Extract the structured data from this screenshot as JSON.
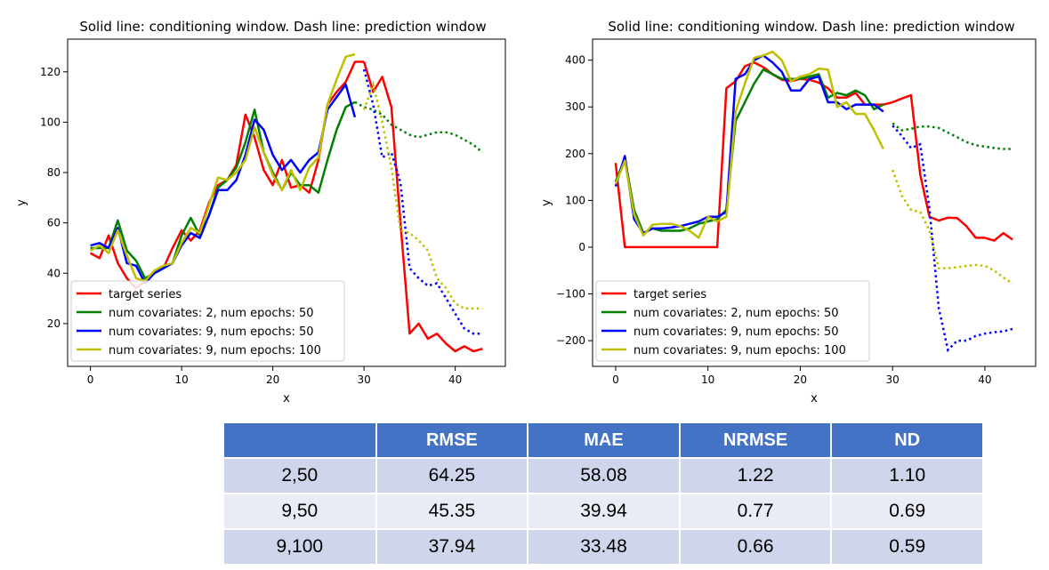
{
  "chart_data": [
    {
      "type": "line",
      "title": "Solid line: conditioning window. Dash line: prediction window",
      "xlabel": "x",
      "ylabel": "y",
      "xlim": [
        -2.5,
        45.5
      ],
      "ylim": [
        3,
        133
      ],
      "xticks": [
        0,
        10,
        20,
        30,
        40
      ],
      "yticks": [
        20,
        40,
        60,
        80,
        100,
        120
      ],
      "legend_position": "lower-left",
      "grid": false,
      "series": [
        {
          "name": "target series",
          "color": "#ff0000",
          "solid": {
            "x": [
              0,
              1,
              2,
              3,
              4,
              5,
              6,
              7,
              8,
              9,
              10,
              11,
              12,
              13,
              14,
              15,
              16,
              17,
              18,
              19,
              20,
              21,
              22,
              23,
              24,
              25,
              26,
              27,
              28,
              29,
              30
            ],
            "y": [
              48,
              46,
              55,
              44,
              38,
              34,
              37,
              40,
              42,
              50,
              57,
              53,
              57,
              68,
              75,
              77,
              83,
              103,
              94,
              81,
              75,
              85,
              74,
              75,
              72,
              85,
              107,
              112,
              116,
              124,
              124
            ]
          },
          "dashed": null,
          "tail": {
            "x": [
              30,
              31,
              32,
              33,
              34,
              35,
              36,
              37,
              38,
              39,
              40,
              41,
              42,
              43
            ],
            "y": [
              124,
              112,
              118,
              106,
              60,
              16,
              20,
              14,
              16,
              12,
              9,
              11,
              9,
              10
            ]
          }
        },
        {
          "name": "num covariates: 2, num epochs: 50",
          "color": "#008000",
          "solid": {
            "x": [
              0,
              1,
              2,
              3,
              4,
              5,
              6,
              7,
              8,
              9,
              10,
              11,
              12,
              13,
              14,
              15,
              16,
              17,
              18,
              19,
              20,
              21,
              22,
              23,
              24,
              25,
              26,
              27,
              28,
              29
            ],
            "y": [
              50,
              50,
              50,
              61,
              49,
              45,
              38,
              40,
              42,
              44,
              55,
              62,
              55,
              63,
              74,
              77,
              82,
              92,
              105,
              88,
              80,
              73,
              80,
              75,
              75,
              72,
              85,
              97,
              106,
              108
            ]
          },
          "dashed": {
            "x": [
              29,
              30,
              31,
              32,
              33,
              34,
              35,
              36,
              37,
              38,
              39,
              40,
              41,
              42,
              43
            ],
            "y": [
              108,
              106,
              105,
              103,
              99,
              97,
              95,
              94,
              95,
              96,
              96,
              95,
              93,
              91,
              88
            ]
          }
        },
        {
          "name": "num covariates: 9, num epochs: 50",
          "color": "#0000ff",
          "solid": {
            "x": [
              0,
              1,
              2,
              3,
              4,
              5,
              6,
              7,
              8,
              9,
              10,
              11,
              12,
              13,
              14,
              15,
              16,
              17,
              18,
              19,
              20,
              21,
              22,
              23,
              24,
              25,
              26,
              27,
              28,
              29
            ],
            "y": [
              51,
              52,
              50,
              58,
              44,
              43,
              36,
              40,
              42,
              44,
              51,
              56,
              54,
              63,
              73,
              73,
              77,
              87,
              101,
              97,
              87,
              81,
              85,
              80,
              85,
              88,
              105,
              110,
              115,
              102
            ]
          },
          "dashed": {
            "x": [
              30,
              31,
              32,
              33,
              34,
              35,
              36,
              37,
              38,
              39,
              40,
              41,
              42,
              43
            ],
            "y": [
              121,
              107,
              86,
              88,
              76,
              42,
              38,
              35,
              36,
              30,
              24,
              18,
              16,
              16
            ]
          }
        },
        {
          "name": "num covariates: 9, num epochs: 100",
          "color": "#bfbf00",
          "solid": {
            "x": [
              0,
              1,
              2,
              3,
              4,
              5,
              6,
              7,
              8,
              9,
              10,
              11,
              12,
              13,
              14,
              15,
              16,
              17,
              18,
              19,
              20,
              21,
              22,
              23,
              24,
              25,
              26,
              27,
              28,
              29
            ],
            "y": [
              49,
              51,
              48,
              57,
              47,
              38,
              37,
              41,
              43,
              44,
              52,
              58,
              56,
              67,
              78,
              77,
              80,
              85,
              98,
              88,
              79,
              73,
              81,
              73,
              82,
              86,
              107,
              117,
              126,
              127
            ]
          },
          "dashed": {
            "x": [
              30,
              31,
              32,
              33,
              34,
              35,
              36,
              37,
              38,
              39,
              40,
              41,
              42,
              43
            ],
            "y": [
              105,
              115,
              100,
              82,
              57,
              56,
              53,
              49,
              38,
              34,
              28,
              26,
              26,
              26
            ]
          }
        }
      ]
    },
    {
      "type": "line",
      "title": "Solid line: conditioning window. Dash line: prediction window",
      "xlabel": "x",
      "ylabel": "y",
      "xlim": [
        -2.5,
        45.5
      ],
      "ylim": [
        -255,
        445
      ],
      "xticks": [
        0,
        10,
        20,
        30,
        40
      ],
      "yticks": [
        -200,
        -100,
        0,
        100,
        200,
        300,
        400
      ],
      "legend_position": "lower-left",
      "grid": false,
      "series": [
        {
          "name": "target series",
          "color": "#ff0000",
          "solid": {
            "x": [
              0,
              1,
              2,
              3,
              4,
              5,
              6,
              7,
              8,
              9,
              10,
              11,
              12,
              13,
              14,
              15,
              16,
              17,
              18,
              19,
              20,
              21,
              22,
              23,
              24,
              25,
              26,
              27,
              28,
              29,
              30
            ],
            "y": [
              180,
              0,
              0,
              0,
              0,
              0,
              0,
              0,
              0,
              0,
              0,
              0,
              340,
              355,
              387,
              395,
              385,
              370,
              358,
              355,
              360,
              358,
              352,
              340,
              320,
              320,
              330,
              305,
              305,
              305,
              310
            ]
          },
          "dashed": null,
          "tail": {
            "x": [
              30,
              31,
              32,
              33,
              34,
              35,
              36,
              37,
              38,
              39,
              40,
              41,
              42,
              43
            ],
            "y": [
              310,
              318,
              325,
              155,
              65,
              57,
              63,
              62,
              45,
              20,
              20,
              14,
              30,
              16
            ]
          }
        },
        {
          "name": "num covariates: 2, num epochs: 50",
          "color": "#008000",
          "solid": {
            "x": [
              0,
              1,
              2,
              3,
              4,
              5,
              6,
              7,
              8,
              9,
              10,
              11,
              12,
              13,
              14,
              15,
              16,
              17,
              18,
              19,
              20,
              21,
              22,
              23,
              24,
              25,
              26,
              27,
              28,
              29
            ],
            "y": [
              140,
              190,
              80,
              30,
              40,
              35,
              35,
              35,
              40,
              50,
              55,
              60,
              80,
              270,
              310,
              350,
              380,
              370,
              360,
              360,
              360,
              365,
              370,
              320,
              330,
              325,
              335,
              325,
              295,
              305
            ]
          },
          "dashed": {
            "x": [
              30,
              31,
              32,
              33,
              34,
              35,
              36,
              37,
              38,
              39,
              40,
              41,
              42,
              43
            ],
            "y": [
              265,
              250,
              253,
              258,
              258,
              255,
              245,
              235,
              225,
              218,
              215,
              212,
              210,
              210
            ]
          }
        },
        {
          "name": "num covariates: 9, num epochs: 50",
          "color": "#0000ff",
          "solid": {
            "x": [
              0,
              1,
              2,
              3,
              4,
              5,
              6,
              7,
              8,
              9,
              10,
              11,
              12,
              13,
              14,
              15,
              16,
              17,
              18,
              19,
              20,
              21,
              22,
              23,
              24,
              25,
              26,
              27,
              28,
              29
            ],
            "y": [
              130,
              195,
              60,
              30,
              40,
              40,
              42,
              45,
              50,
              55,
              65,
              65,
              75,
              360,
              370,
              400,
              410,
              395,
              375,
              335,
              335,
              360,
              365,
              310,
              310,
              295,
              305,
              305,
              305,
              290
            ]
          },
          "dashed": {
            "x": [
              30,
              31,
              32,
              33,
              34,
              35,
              36,
              37,
              38,
              39,
              40,
              41,
              42,
              43
            ],
            "y": [
              260,
              238,
              212,
              220,
              82,
              -130,
              -220,
              -200,
              -200,
              -190,
              -185,
              -182,
              -180,
              -175
            ]
          }
        },
        {
          "name": "num covariates: 9, num epochs: 100",
          "color": "#bfbf00",
          "solid": {
            "x": [
              0,
              1,
              2,
              3,
              4,
              5,
              6,
              7,
              8,
              9,
              10,
              11,
              12,
              13,
              14,
              15,
              16,
              17,
              18,
              19,
              20,
              21,
              22,
              23,
              24,
              25,
              26,
              27,
              28,
              29
            ],
            "y": [
              135,
              185,
              70,
              25,
              48,
              50,
              50,
              45,
              35,
              20,
              65,
              55,
              65,
              290,
              350,
              405,
              410,
              418,
              400,
              355,
              365,
              370,
              382,
              380,
              300,
              310,
              285,
              285,
              250,
              210
            ]
          },
          "dashed": {
            "x": [
              30,
              31,
              32,
              33,
              34,
              35,
              36,
              37,
              38,
              39,
              40,
              41,
              42,
              43
            ],
            "y": [
              165,
              110,
              80,
              75,
              35,
              -45,
              -45,
              -43,
              -40,
              -38,
              -40,
              -50,
              -65,
              -78
            ]
          }
        }
      ]
    }
  ],
  "table": {
    "headers": [
      "",
      "RMSE",
      "MAE",
      "NRMSE",
      "ND"
    ],
    "rows": [
      [
        "2,50",
        "64.25",
        "58.08",
        "1.22",
        "1.10"
      ],
      [
        "9,50",
        "45.35",
        "39.94",
        "0.77",
        "0.69"
      ],
      [
        "9,100",
        "37.94",
        "33.48",
        "0.66",
        "0.59"
      ]
    ]
  }
}
